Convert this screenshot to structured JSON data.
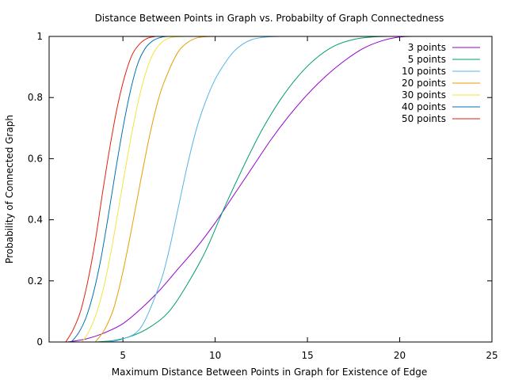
{
  "chart_data": {
    "type": "line",
    "title": "Distance Between Points in Graph vs. Probabilty of Graph Connectedness",
    "xlabel": "Maximum Distance Between Points in Graph for Existence of Edge",
    "ylabel": "Probability of Connected Graph",
    "xlim": [
      1,
      25
    ],
    "ylim": [
      0,
      1
    ],
    "x_ticks": [
      "5",
      "10",
      "15",
      "20",
      "25"
    ],
    "y_ticks": [
      "0",
      "0.2",
      "0.4",
      "0.6",
      "0.8",
      "1"
    ],
    "legend_position": "top-right",
    "grid": false,
    "series": [
      {
        "name": "3 points",
        "color": "#9400d3",
        "x": [
          2,
          3,
          4,
          5,
          6,
          7,
          8,
          9,
          10,
          11,
          12,
          13,
          14,
          15,
          16,
          17,
          18,
          19,
          20,
          21,
          22
        ],
        "y": [
          0,
          0.01,
          0.03,
          0.06,
          0.11,
          0.17,
          0.24,
          0.31,
          0.39,
          0.48,
          0.57,
          0.66,
          0.74,
          0.81,
          0.87,
          0.92,
          0.96,
          0.985,
          0.998,
          1,
          1
        ]
      },
      {
        "name": "5 points",
        "color": "#009e73",
        "x": [
          3.5,
          4.5,
          5.5,
          6.5,
          7.5,
          8.5,
          9.5,
          10.5,
          11.5,
          12.5,
          13.5,
          14.5,
          15.5,
          16.5,
          17.5,
          18.5,
          19.5,
          22
        ],
        "y": [
          0,
          0.005,
          0.02,
          0.05,
          0.1,
          0.19,
          0.3,
          0.44,
          0.57,
          0.69,
          0.79,
          0.87,
          0.93,
          0.97,
          0.99,
          0.998,
          1,
          1
        ]
      },
      {
        "name": "10 points",
        "color": "#56b4e9",
        "x": [
          4,
          5,
          6,
          7,
          7.5,
          8,
          8.5,
          9,
          9.5,
          10,
          10.5,
          11,
          11.5,
          12,
          12.5,
          13,
          13.5,
          14,
          15,
          22
        ],
        "y": [
          0,
          0.01,
          0.05,
          0.19,
          0.3,
          0.44,
          0.58,
          0.7,
          0.79,
          0.86,
          0.91,
          0.95,
          0.975,
          0.99,
          0.996,
          0.999,
          1,
          1,
          1,
          1
        ]
      },
      {
        "name": "20 points",
        "color": "#e69f00",
        "x": [
          3.5,
          4,
          4.5,
          5,
          5.5,
          6,
          6.5,
          7,
          7.5,
          8,
          8.5,
          9,
          9.5,
          10,
          11,
          22
        ],
        "y": [
          0,
          0.04,
          0.11,
          0.23,
          0.38,
          0.54,
          0.69,
          0.81,
          0.89,
          0.95,
          0.98,
          0.995,
          0.999,
          1,
          1,
          1
        ]
      },
      {
        "name": "30 points",
        "color": "#f0e442",
        "x": [
          2.8,
          3.2,
          3.6,
          4,
          4.4,
          4.8,
          5.2,
          5.6,
          6,
          6.4,
          6.8,
          7.2,
          7.6,
          8,
          8.5,
          9,
          22
        ],
        "y": [
          0,
          0.04,
          0.1,
          0.19,
          0.31,
          0.45,
          0.59,
          0.72,
          0.83,
          0.91,
          0.96,
          0.985,
          0.996,
          0.999,
          1,
          1,
          1
        ]
      },
      {
        "name": "40 points",
        "color": "#0072b2",
        "x": [
          2.2,
          2.6,
          3,
          3.4,
          3.8,
          4.2,
          4.6,
          5,
          5.4,
          5.8,
          6.2,
          6.6,
          7,
          7.4,
          8,
          22
        ],
        "y": [
          0,
          0.03,
          0.08,
          0.16,
          0.27,
          0.41,
          0.56,
          0.7,
          0.82,
          0.91,
          0.96,
          0.985,
          0.996,
          1,
          1,
          1
        ]
      },
      {
        "name": "50 points",
        "color": "#e51e10",
        "x": [
          1.9,
          2.3,
          2.7,
          3.1,
          3.5,
          3.9,
          4.3,
          4.7,
          5.1,
          5.5,
          5.9,
          6.3,
          6.7,
          7.1,
          22
        ],
        "y": [
          0,
          0.04,
          0.1,
          0.2,
          0.33,
          0.49,
          0.64,
          0.77,
          0.87,
          0.94,
          0.975,
          0.993,
          0.999,
          1,
          1
        ]
      }
    ]
  }
}
